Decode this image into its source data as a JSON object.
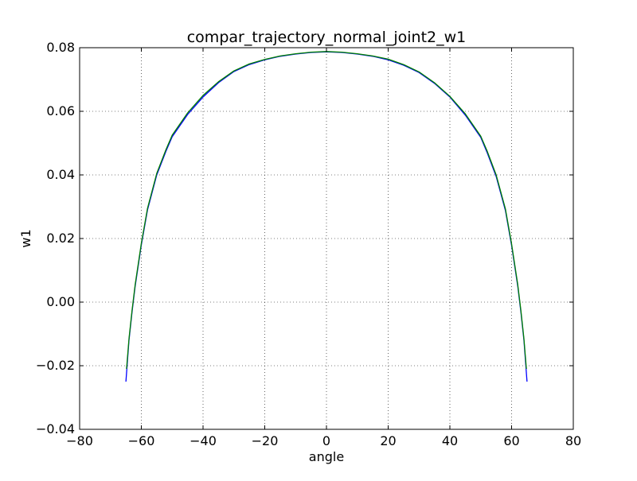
{
  "chart_data": {
    "type": "line",
    "title": "compar_trajectory_normal_joint2_w1",
    "xlabel": "angle",
    "ylabel": "w1",
    "xlim": [
      -80,
      80
    ],
    "ylim": [
      -0.04,
      0.08
    ],
    "xticks": [
      -80,
      -60,
      -40,
      -20,
      0,
      20,
      40,
      60,
      80
    ],
    "xtick_labels": [
      "−80",
      "−60",
      "−40",
      "−20",
      "0",
      "20",
      "40",
      "60",
      "80"
    ],
    "yticks": [
      -0.04,
      -0.02,
      0.0,
      0.02,
      0.04,
      0.06,
      0.08
    ],
    "ytick_labels": [
      "−0.04",
      "−0.02",
      "0.00",
      "0.02",
      "0.04",
      "0.06",
      "0.08"
    ],
    "grid": true,
    "series": [
      {
        "color": "#0000ff",
        "x": [
          -65.0,
          -64.5,
          -64.0,
          -63.0,
          -62.0,
          -60.0,
          -58.0,
          -55.0,
          -52.0,
          -50.0,
          -45.0,
          -40.0,
          -35.0,
          -30.0,
          -25.0,
          -20.0,
          -15.0,
          -10.0,
          -5.0,
          0.0,
          5.0,
          10.0,
          15.0,
          20.0,
          25.0,
          30.0,
          35.0,
          40.0,
          45.0,
          50.0,
          52.0,
          55.0,
          58.0,
          60.0,
          62.0,
          63.0,
          64.0,
          64.5,
          65.0
        ],
        "y": [
          -0.025,
          -0.0185,
          -0.012,
          -0.003,
          0.005,
          0.018,
          0.029,
          0.04,
          0.0475,
          0.052,
          0.059,
          0.0645,
          0.069,
          0.0725,
          0.0747,
          0.0762,
          0.0773,
          0.078,
          0.0785,
          0.0787,
          0.0785,
          0.078,
          0.0773,
          0.0762,
          0.0745,
          0.0722,
          0.0688,
          0.0645,
          0.0588,
          0.0518,
          0.0472,
          0.0395,
          0.0288,
          0.0178,
          0.005,
          -0.003,
          -0.012,
          -0.0185,
          -0.025
        ]
      },
      {
        "color": "#008000",
        "x": [
          -64.8,
          -64.0,
          -63.0,
          -62.0,
          -60.0,
          -58.0,
          -55.0,
          -52.0,
          -50.0,
          -45.0,
          -40.0,
          -35.0,
          -30.0,
          -25.0,
          -20.0,
          -15.0,
          -10.0,
          -5.0,
          0.0,
          5.0,
          10.0,
          15.0,
          20.0,
          25.0,
          30.0,
          35.0,
          40.0,
          45.0,
          50.0,
          52.0,
          55.0,
          58.0,
          60.0,
          62.0,
          63.0,
          64.0,
          64.8
        ],
        "y": [
          -0.021,
          -0.0115,
          -0.0025,
          0.0055,
          0.0185,
          0.0295,
          0.0405,
          0.048,
          0.0525,
          0.0595,
          0.065,
          0.0693,
          0.0727,
          0.0749,
          0.0763,
          0.0774,
          0.0781,
          0.0786,
          0.0788,
          0.0786,
          0.0781,
          0.0774,
          0.0764,
          0.0747,
          0.0724,
          0.069,
          0.0647,
          0.0592,
          0.0522,
          0.0477,
          0.04,
          0.0293,
          0.0183,
          0.0055,
          -0.0025,
          -0.0115,
          -0.021
        ]
      }
    ]
  }
}
